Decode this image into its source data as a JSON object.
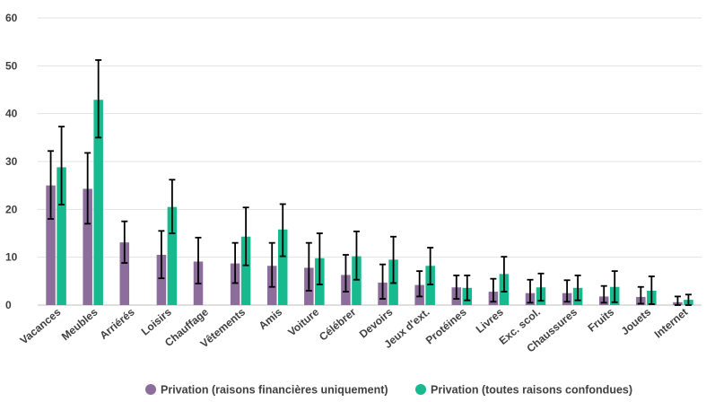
{
  "chart_data": {
    "type": "bar",
    "title": "",
    "xlabel": "",
    "ylabel": "",
    "ylim": [
      0,
      60
    ],
    "yticks": [
      0,
      10,
      20,
      30,
      40,
      50,
      60
    ],
    "grid": true,
    "legend_position": "bottom",
    "categories": [
      "Vacances",
      "Meubles",
      "Arriérés",
      "Loisirs",
      "Chauffage",
      "Vêtements",
      "Amis",
      "Voiture",
      "Célébrer",
      "Devoirs",
      "Jeux d'ext.",
      "Protéines",
      "Livres",
      "Exc. scol.",
      "Chaussures",
      "Fruits",
      "Jouets",
      "Internet"
    ],
    "series": [
      {
        "name": "Privation (raisons financières uniquement)",
        "color": "#8c6d9c",
        "values": [
          25,
          24.3,
          13.1,
          10.5,
          9.1,
          8.7,
          8.2,
          7.8,
          6.3,
          4.7,
          4.2,
          3.7,
          2.8,
          2.5,
          2.5,
          1.8,
          1.7,
          0.6
        ],
        "error_low": [
          18,
          17,
          8.8,
          5.6,
          4.5,
          4.6,
          3.8,
          3,
          2.8,
          1.3,
          1.8,
          1.3,
          0.7,
          0.5,
          0.7,
          0.5,
          0.3,
          0
        ],
        "error_high": [
          32.2,
          31.8,
          17.5,
          15.5,
          14.1,
          13,
          13,
          13,
          10.5,
          8.5,
          7.1,
          6.2,
          5.5,
          5.3,
          5.2,
          4,
          3.8,
          1.8
        ]
      },
      {
        "name": "Privation (toutes raisons confondues)",
        "color": "#17b98e",
        "values": [
          28.8,
          42.9,
          null,
          20.5,
          null,
          14.3,
          15.8,
          9.8,
          10.2,
          9.5,
          8.2,
          3.6,
          6.5,
          3.7,
          3.6,
          3.8,
          3,
          1.1
        ],
        "error_low": [
          21,
          35,
          null,
          15,
          null,
          8.3,
          10.2,
          4.3,
          5.3,
          4.6,
          4.3,
          1,
          2.8,
          0.9,
          1,
          0.6,
          0.2,
          0
        ],
        "error_high": [
          37.3,
          51.2,
          null,
          26.2,
          null,
          20.4,
          21.1,
          15,
          15.4,
          14.3,
          12,
          6.2,
          10.1,
          6.6,
          6.2,
          7.1,
          6,
          2.2
        ]
      }
    ]
  }
}
